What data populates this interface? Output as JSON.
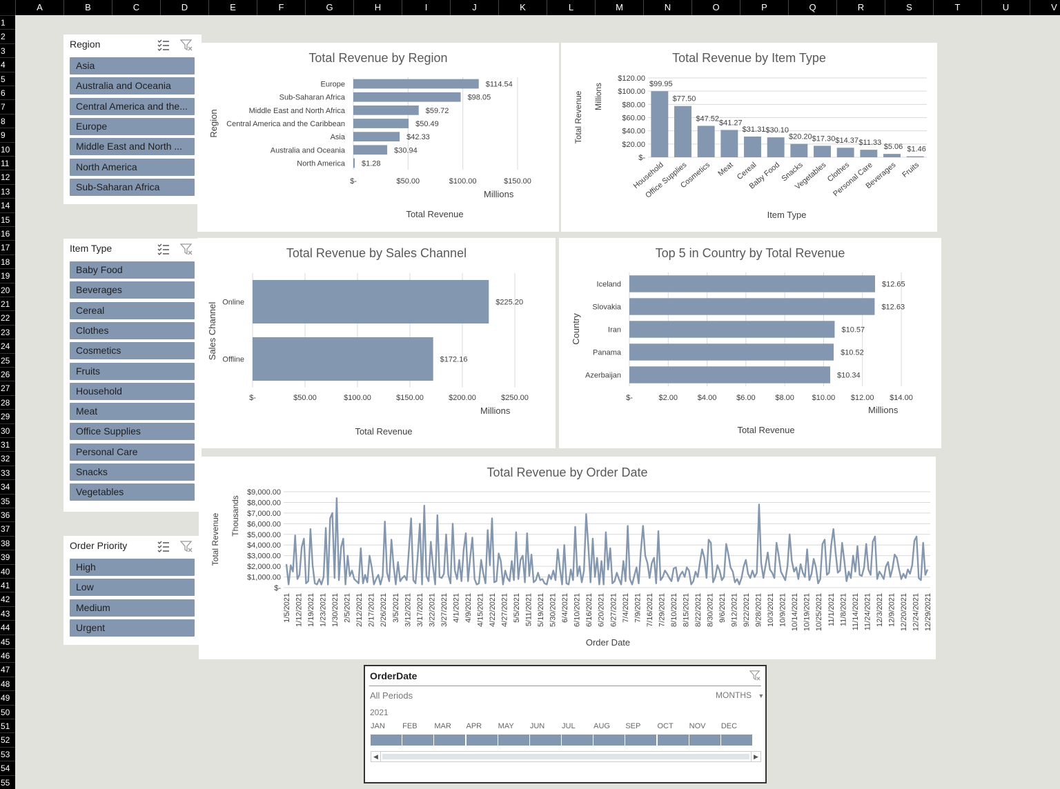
{
  "columns": [
    "A",
    "B",
    "C",
    "D",
    "E",
    "F",
    "G",
    "H",
    "I",
    "J",
    "K",
    "L",
    "M",
    "N",
    "O",
    "P",
    "Q",
    "R",
    "S",
    "T",
    "U",
    "V"
  ],
  "rows": [
    "1",
    "2",
    "3",
    "4",
    "5",
    "6",
    "7",
    "8",
    "9",
    "10",
    "11",
    "12",
    "13",
    "14",
    "15",
    "16",
    "17",
    "18",
    "19",
    "20",
    "21",
    "22",
    "23",
    "24",
    "25",
    "26",
    "27",
    "28",
    "29",
    "30",
    "31",
    "32",
    "33",
    "34",
    "35",
    "36",
    "37",
    "38",
    "39",
    "40",
    "41",
    "42",
    "43",
    "44",
    "45",
    "46",
    "47",
    "48",
    "49",
    "50",
    "51",
    "52",
    "53",
    "54",
    "55"
  ],
  "slicers": {
    "region": {
      "title": "Region",
      "items": [
        "Asia",
        "Australia and Oceania",
        "Central America and the...",
        "Europe",
        "Middle East and North ...",
        "North America",
        "Sub-Saharan Africa"
      ]
    },
    "item_type": {
      "title": "Item Type",
      "items": [
        "Baby Food",
        "Beverages",
        "Cereal",
        "Clothes",
        "Cosmetics",
        "Fruits",
        "Household",
        "Meat",
        "Office Supplies",
        "Personal Care",
        "Snacks",
        "Vegetables"
      ]
    },
    "order_priority": {
      "title": "Order Priority",
      "items": [
        "High",
        "Low",
        "Medium",
        "Urgent"
      ]
    }
  },
  "timeline": {
    "title": "OrderDate",
    "period_label": "All Periods",
    "level": "MONTHS",
    "year": "2021",
    "months": [
      "JAN",
      "FEB",
      "MAR",
      "APR",
      "MAY",
      "JUN",
      "JUL",
      "AUG",
      "SEP",
      "OCT",
      "NOV",
      "DEC"
    ]
  },
  "colors": {
    "bar": "#8497b0",
    "line": "#8497b0",
    "grid": "#d9d9d9"
  },
  "chart_data": [
    {
      "id": "region",
      "type": "bar",
      "orientation": "horizontal",
      "title": "Total Revenue by Region",
      "xlabel": "Total Revenue",
      "ylabel": "Region",
      "unit_label": "Millions",
      "categories": [
        "Europe",
        "Sub-Saharan Africa",
        "Middle East and North Africa",
        "Central America and the Caribbean",
        "Asia",
        "Australia and Oceania",
        "North America"
      ],
      "values": [
        114.54,
        98.05,
        59.72,
        50.49,
        42.33,
        30.94,
        1.28
      ],
      "data_labels": [
        "$114.54",
        "$98.05",
        "$59.72",
        "$50.49",
        "$42.33",
        "$30.94",
        "$1.28"
      ],
      "xlim": [
        0,
        150
      ],
      "ticks": [
        "$-",
        "$50.00",
        "$100.00",
        "$150.00"
      ]
    },
    {
      "id": "item_type",
      "type": "bar",
      "orientation": "vertical",
      "title": "Total Revenue by Item Type",
      "xlabel": "Item Type",
      "ylabel": "Total Revenue",
      "unit_label": "Millions",
      "categories": [
        "Household",
        "Office Supplies",
        "Cosmetics",
        "Meat",
        "Cereal",
        "Baby Food",
        "Snacks",
        "Vegetables",
        "Clothes",
        "Personal Care",
        "Beverages",
        "Fruits"
      ],
      "values": [
        99.95,
        77.5,
        47.52,
        41.27,
        31.31,
        30.1,
        20.2,
        17.3,
        14.37,
        11.33,
        5.06,
        1.46
      ],
      "data_labels": [
        "$99.95",
        "$77.50",
        "$47.52",
        "$41.27",
        "$31.31",
        "$30.10",
        "$20.20",
        "$17.30",
        "$14.37",
        "$11.33",
        "$5.06",
        "$1.46"
      ],
      "ylim": [
        0,
        120
      ],
      "ticks": [
        "$-",
        "$20.00",
        "$40.00",
        "$60.00",
        "$80.00",
        "$100.00",
        "$120.00"
      ]
    },
    {
      "id": "sales_channel",
      "type": "bar",
      "orientation": "horizontal",
      "title": "Total Revenue by Sales Channel",
      "xlabel": "Total Revenue",
      "ylabel": "Sales Channel",
      "unit_label": "Millions",
      "categories": [
        "Online",
        "Offline"
      ],
      "values": [
        225.2,
        172.16
      ],
      "data_labels": [
        "$225.20",
        "$172.16"
      ],
      "xlim": [
        0,
        250
      ],
      "ticks": [
        "$-",
        "$50.00",
        "$100.00",
        "$150.00",
        "$200.00",
        "$250.00"
      ]
    },
    {
      "id": "country",
      "type": "bar",
      "orientation": "horizontal",
      "title": "Top 5 in Country by Total Revenue",
      "xlabel": "Total Revenue",
      "ylabel": "Country",
      "unit_label": "Millions",
      "categories": [
        "Iceland",
        "Slovakia",
        "Iran",
        "Panama",
        "Azerbaijan"
      ],
      "values": [
        12.65,
        12.63,
        10.57,
        10.52,
        10.34
      ],
      "data_labels": [
        "$12.65",
        "$12.63",
        "$10.57",
        "$10.52",
        "$10.34"
      ],
      "xlim": [
        0,
        14
      ],
      "ticks": [
        "$-",
        "$2.00",
        "$4.00",
        "$6.00",
        "$8.00",
        "$10.00",
        "$12.00",
        "$14.00"
      ]
    },
    {
      "id": "order_date",
      "type": "line",
      "title": "Total Revenue by Order Date",
      "xlabel": "Order Date",
      "ylabel": "Total Revenue",
      "unit_label": "Thousands",
      "ylim": [
        0,
        9000
      ],
      "ticks": [
        "$-",
        "$1,000.00",
        "$2,000.00",
        "$3,000.00",
        "$4,000.00",
        "$5,000.00",
        "$6,000.00",
        "$7,000.00",
        "$8,000.00",
        "$9,000.00"
      ],
      "x_tick_labels": [
        "1/5/2021",
        "1/12/2021",
        "1/19/2021",
        "1/23/2021",
        "1/30/2021",
        "2/5/2021",
        "2/12/2021",
        "2/17/2021",
        "2/26/2021",
        "3/5/2021",
        "3/12/2021",
        "3/17/2021",
        "3/22/2021",
        "3/27/2021",
        "4/1/2021",
        "4/9/2021",
        "4/15/2021",
        "4/22/2021",
        "4/27/2021",
        "5/5/2021",
        "5/11/2021",
        "5/19/2021",
        "5/30/2021",
        "6/4/2021",
        "6/10/2021",
        "6/16/2021",
        "6/20/2021",
        "6/27/2021",
        "7/4/2021",
        "7/9/2021",
        "7/16/2021",
        "7/29/2021",
        "8/10/2021",
        "8/15/2021",
        "8/22/2021",
        "8/30/2021",
        "9/6/2021",
        "9/12/2021",
        "9/22/2021",
        "9/28/2021",
        "10/3/2021",
        "10/9/2021",
        "10/14/2021",
        "10/19/2021",
        "10/25/2021",
        "11/1/2021",
        "11/8/2021",
        "11/14/2021",
        "11/24/2021",
        "12/3/2021",
        "12/9/2021",
        "12/20/2021",
        "12/24/2021",
        "12/29/2021"
      ],
      "values": [
        2200,
        300,
        2100,
        1500,
        4900,
        800,
        1200,
        3800,
        4600,
        400,
        600,
        5500,
        2100,
        400,
        300,
        800,
        300,
        1000,
        5600,
        300,
        6500,
        7000,
        900,
        8400,
        700,
        3800,
        4600,
        300,
        3000,
        1100,
        1600,
        800,
        600,
        400,
        3700,
        400,
        1200,
        500,
        3000,
        1900,
        300,
        800,
        1200,
        300,
        1100,
        6200,
        1400,
        600,
        4500,
        2000,
        300,
        2400,
        600,
        900,
        1100,
        700,
        3600,
        6500,
        700,
        400,
        2900,
        6000,
        300,
        7700,
        1100,
        600,
        4300,
        2000,
        300,
        6800,
        1000,
        900,
        1300,
        5000,
        1200,
        400,
        6000,
        1600,
        800,
        2600,
        600,
        3500,
        5100,
        600,
        2800,
        4700,
        800,
        300,
        400,
        2600,
        1300,
        400,
        5400,
        2100,
        6500,
        500,
        600,
        3200,
        2500,
        300,
        1600,
        900,
        600,
        2500,
        700,
        5200,
        800,
        2600,
        3000,
        500,
        5100,
        1100,
        3100,
        500,
        700,
        1400,
        700,
        800,
        400,
        300,
        1200,
        800,
        1600,
        700,
        3600,
        1800,
        300,
        4000,
        400,
        300,
        1700,
        700,
        5700,
        1100,
        2000,
        500,
        1600,
        6900,
        3900,
        500,
        4600,
        1000,
        2800,
        300,
        2500,
        300,
        5200,
        1700,
        3700,
        400,
        600,
        1400,
        800,
        300,
        2500,
        600,
        5800,
        800,
        300,
        1100,
        1900,
        400,
        3400,
        5800,
        3000,
        2300,
        900,
        2300,
        2800,
        400,
        5300,
        700,
        1000,
        1600,
        1300,
        900,
        600,
        1800,
        1900,
        600,
        1200,
        1500,
        1000,
        1900,
        1600,
        300,
        600,
        1500,
        1000,
        2400,
        3600,
        2800,
        900,
        4500,
        4200,
        500,
        1000,
        2100,
        1600,
        700,
        1000,
        4100,
        3100,
        1900,
        1500,
        500,
        800,
        300,
        900,
        2000,
        2600,
        1300,
        900,
        1600,
        1000,
        1400,
        7800,
        2300,
        900,
        2100,
        3300,
        1700,
        1400,
        900,
        4200,
        3000,
        1500,
        1100,
        700,
        2000,
        5000,
        2500,
        1500,
        1900,
        800,
        2200,
        1400,
        1000,
        3600,
        700,
        1300,
        2700,
        1900,
        400,
        800,
        4100,
        4500,
        1200,
        1400,
        4000,
        5500,
        3300,
        1400,
        1600,
        4200,
        2500,
        600,
        1500,
        900,
        3000,
        1500,
        3900,
        1200,
        1100,
        1900,
        4100,
        1700,
        1200,
        4300,
        4800,
        800,
        1500,
        1200,
        800,
        2000,
        2400,
        1000,
        1800,
        3100,
        2800,
        1700,
        800,
        1300,
        900,
        1700,
        1300,
        2100,
        4400,
        4800,
        900,
        700,
        4200,
        1200,
        1700
      ]
    }
  ]
}
